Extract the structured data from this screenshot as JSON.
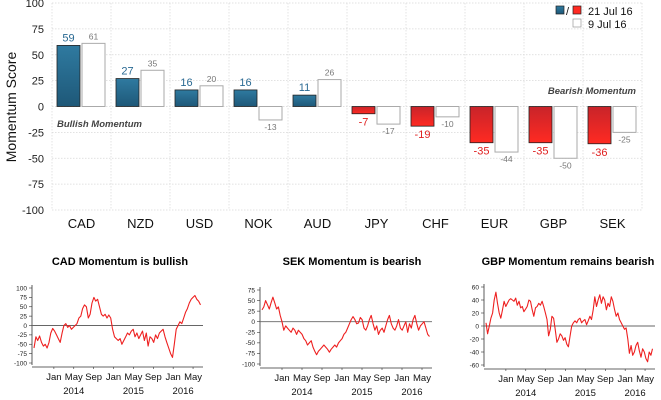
{
  "colors": {
    "bullish_dark": "#1e5878",
    "bullish_light": "#2f7aa0",
    "bearish_dark": "#c8242a",
    "bearish_light": "#ff2a22",
    "prior_fill": "#ffffff",
    "prior_stroke": "#aaaaaa",
    "mini_line": "#ee2020",
    "zero_line": "#666666"
  },
  "chart_data": [
    {
      "type": "bar",
      "title": "",
      "ylabel": "Momentum Score",
      "xlabel": "",
      "ylim": [
        -100,
        100
      ],
      "yticks": [
        100,
        75,
        50,
        25,
        0,
        -25,
        -50,
        -75,
        -100
      ],
      "grid": true,
      "categories": [
        "CAD",
        "NZD",
        "USD",
        "NOK",
        "AUD",
        "JPY",
        "CHF",
        "EUR",
        "GBP",
        "SEK"
      ],
      "series": [
        {
          "name": "21 Jul 16",
          "values": [
            59,
            27,
            16,
            16,
            11,
            -7,
            -19,
            -35,
            -35,
            -36
          ]
        },
        {
          "name": "9 Jul 16",
          "values": [
            61,
            35,
            20,
            -13,
            26,
            -17,
            -10,
            -44,
            -50,
            -25
          ]
        }
      ],
      "legend": {
        "placement": "top-right",
        "entries": [
          "21 Jul 16",
          "9 Jul 16"
        ],
        "separator": "/"
      },
      "annotations": [
        "Bullish Momentum",
        "Bearish Momentum"
      ]
    },
    {
      "type": "line",
      "title": "CAD Momentum is bullish",
      "ylim": [
        -100,
        100
      ],
      "yticks": [
        100,
        75,
        50,
        25,
        0,
        -25,
        -50,
        -75,
        -100
      ],
      "xticks": [
        "Jan",
        "May",
        "Sep",
        "Jan",
        "May",
        "Sep",
        "Jan",
        "May"
      ],
      "xyears": [
        "2014",
        "2015",
        "2016"
      ],
      "x_range": [
        "2013-09",
        "2016-07"
      ],
      "series": [
        {
          "name": "CAD",
          "values": [
            -60,
            -30,
            -40,
            -28,
            -45,
            -55,
            -50,
            -60,
            -45,
            -20,
            -8,
            -15,
            -25,
            -35,
            -45,
            -20,
            0,
            5,
            -5,
            0,
            -10,
            -5,
            0,
            5,
            20,
            25,
            45,
            55,
            50,
            20,
            30,
            60,
            75,
            65,
            70,
            50,
            30,
            25,
            30,
            20,
            28,
            20,
            -10,
            -30,
            -35,
            -40,
            -35,
            -50,
            -40,
            -30,
            -20,
            -25,
            -15,
            -10,
            -30,
            -20,
            -35,
            -25,
            -15,
            -40,
            -20,
            -55,
            -30,
            -35,
            -45,
            -25,
            -35,
            -20,
            -15,
            -10,
            -30,
            -45,
            -60,
            -75,
            -85,
            -50,
            -10,
            0,
            10,
            5,
            20,
            35,
            45,
            60,
            70,
            75,
            80,
            70,
            65,
            55
          ]
        }
      ],
      "zero_line": true
    },
    {
      "type": "line",
      "title": "SEK Momentum is bearish",
      "ylim": [
        -100,
        75
      ],
      "yticks": [
        75,
        50,
        25,
        0,
        -25,
        -50,
        -75,
        -100
      ],
      "xticks": [
        "Jan",
        "May",
        "Sep",
        "Jan",
        "May",
        "Sep",
        "Jan",
        "May"
      ],
      "xyears": [
        "2014",
        "2015",
        "2016"
      ],
      "x_range": [
        "2013-09",
        "2016-07"
      ],
      "series": [
        {
          "name": "SEK",
          "values": [
            28,
            35,
            50,
            40,
            30,
            45,
            58,
            45,
            30,
            35,
            15,
            0,
            -20,
            -10,
            -15,
            -20,
            -25,
            -15,
            -20,
            -30,
            -20,
            -25,
            -30,
            -40,
            -45,
            -55,
            -50,
            -45,
            -60,
            -70,
            -78,
            -70,
            -65,
            -60,
            -55,
            -60,
            -65,
            -72,
            -65,
            -60,
            -55,
            -60,
            -50,
            -45,
            -40,
            -30,
            -25,
            -15,
            -5,
            5,
            12,
            5,
            -5,
            -3,
            10,
            5,
            -15,
            -20,
            -10,
            5,
            15,
            -5,
            -20,
            -10,
            -30,
            -20,
            -15,
            -25,
            -10,
            5,
            15,
            -5,
            -15,
            -20,
            -10,
            5,
            -15,
            -20,
            -10,
            0,
            -25,
            -5,
            -15,
            5,
            15,
            -5,
            -20,
            -10,
            -5,
            0,
            -15,
            -30,
            -35
          ]
        }
      ],
      "zero_line": true
    },
    {
      "type": "line",
      "title": "GBP Momentum remains bearish",
      "ylim": [
        -60,
        60
      ],
      "yticks": [
        60,
        40,
        20,
        0,
        -20,
        -40,
        -60
      ],
      "xticks": [
        "Jan",
        "May",
        "Sep",
        "Jan",
        "May",
        "Sep",
        "Jan",
        "May"
      ],
      "xyears": [
        "2014",
        "2015",
        "2016"
      ],
      "x_range": [
        "2013-09",
        "2016-07"
      ],
      "series": [
        {
          "name": "GBP",
          "values": [
            5,
            -12,
            0,
            12,
            20,
            40,
            52,
            35,
            20,
            12,
            25,
            38,
            30,
            35,
            40,
            42,
            40,
            38,
            43,
            32,
            38,
            28,
            30,
            22,
            26,
            30,
            40,
            38,
            25,
            15,
            28,
            30,
            35,
            32,
            38,
            30,
            20,
            10,
            -15,
            -5,
            15,
            12,
            -5,
            -25,
            -20,
            -12,
            -15,
            -22,
            -18,
            -28,
            -32,
            -15,
            0,
            5,
            8,
            5,
            10,
            12,
            5,
            8,
            10,
            2,
            8,
            15,
            10,
            25,
            45,
            30,
            40,
            48,
            35,
            45,
            40,
            25,
            35,
            30,
            45,
            38,
            25,
            15,
            20,
            10,
            5,
            0,
            -5,
            -3,
            -20,
            -42,
            -30,
            -45,
            -40,
            -30,
            -25,
            -38,
            -48,
            -35,
            -40,
            -50,
            -55,
            -40,
            -45,
            -35
          ]
        }
      ],
      "zero_line": true
    }
  ]
}
